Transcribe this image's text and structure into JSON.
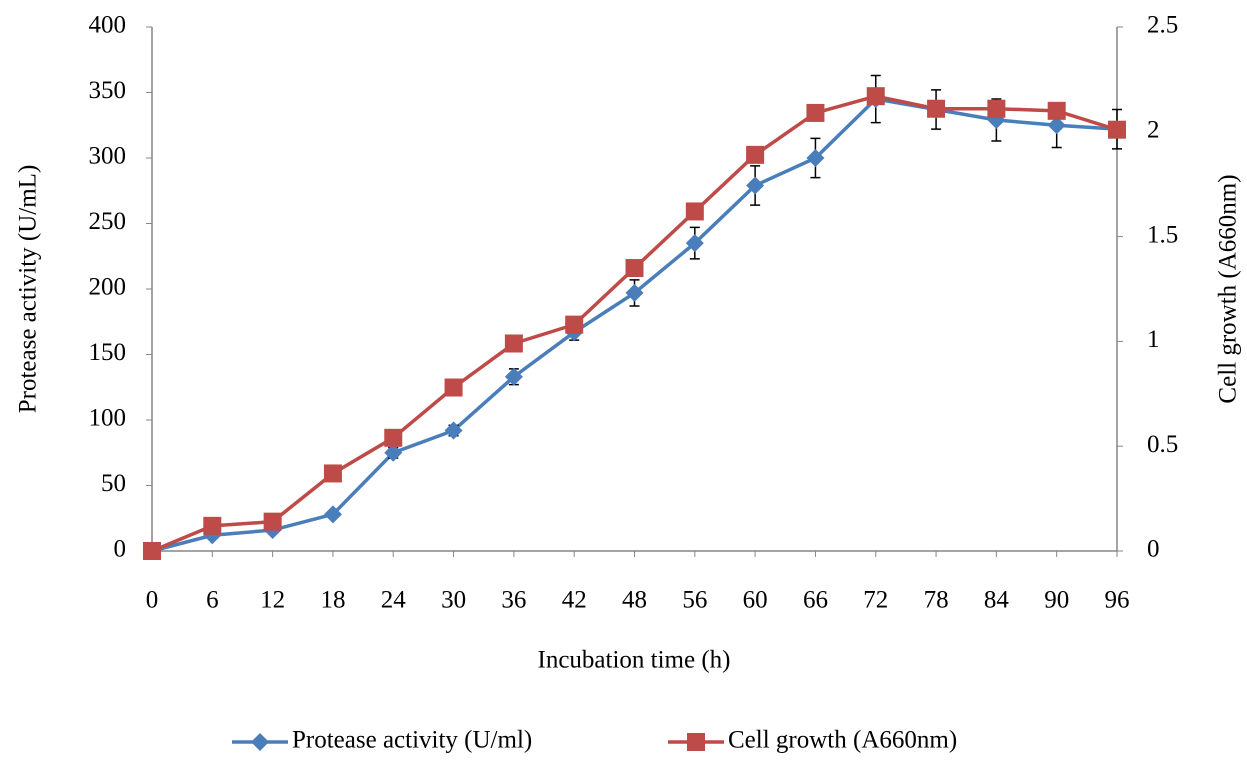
{
  "chart_data": {
    "type": "line",
    "xlabel": "Incubation time (h)",
    "ylabel": "Protease activity (U/mL)",
    "y2label": "Cell growth (A660nm)",
    "categories": [
      "0",
      "6",
      "12",
      "18",
      "24",
      "30",
      "36",
      "42",
      "48",
      "56",
      "60",
      "66",
      "72",
      "78",
      "84",
      "90",
      "96"
    ],
    "ylim": [
      0,
      400
    ],
    "yticks": [
      0,
      50,
      100,
      150,
      200,
      250,
      300,
      350,
      400
    ],
    "y2lim": [
      0,
      2.5
    ],
    "y2ticks": [
      0,
      0.5,
      1,
      1.5,
      2,
      2.5
    ],
    "legend": "bottom",
    "series": [
      {
        "name": "Protease activity (U/ml)",
        "color": "#4a7ebb",
        "marker": "diamond",
        "values": [
          0,
          12,
          16,
          28,
          75,
          92,
          133,
          167,
          197,
          235,
          279,
          300,
          345,
          337,
          329,
          325,
          322
        ],
        "errors": [
          null,
          null,
          null,
          null,
          4,
          4,
          6,
          6,
          10,
          12,
          15,
          15,
          18,
          15,
          16,
          17,
          15
        ]
      },
      {
        "name": "Cell growth (A660nm)",
        "color": "#be4b48",
        "marker": "square",
        "axis": "y2",
        "values": [
          0,
          0.12,
          0.14,
          0.37,
          0.54,
          0.78,
          0.99,
          1.08,
          1.35,
          1.62,
          1.89,
          2.09,
          2.17,
          2.11,
          2.11,
          2.1,
          2.01
        ]
      }
    ]
  }
}
